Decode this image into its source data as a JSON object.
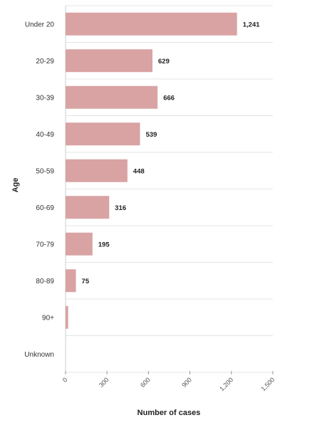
{
  "chart_data": {
    "type": "bar",
    "orientation": "horizontal",
    "categories": [
      "Under 20",
      "20-29",
      "30-39",
      "40-49",
      "50-59",
      "60-69",
      "70-79",
      "80-89",
      "90+",
      "Unknown"
    ],
    "values": [
      1241,
      629,
      666,
      539,
      448,
      316,
      195,
      75,
      19,
      0
    ],
    "data_labels": [
      "1,241",
      "629",
      "666",
      "539",
      "448",
      "316",
      "195",
      "75",
      "",
      ""
    ],
    "xlabel": "Number of cases",
    "ylabel": "Age",
    "xlim": [
      0,
      1500
    ],
    "x_ticks": [
      0,
      300,
      600,
      900,
      1200,
      1500
    ],
    "x_tick_labels": [
      "0",
      "300",
      "600",
      "900",
      "1,200",
      "1,500"
    ],
    "bar_color": "#d9a3a3",
    "grid_color": "#e4e4e4",
    "grid": true,
    "legend": "none"
  }
}
